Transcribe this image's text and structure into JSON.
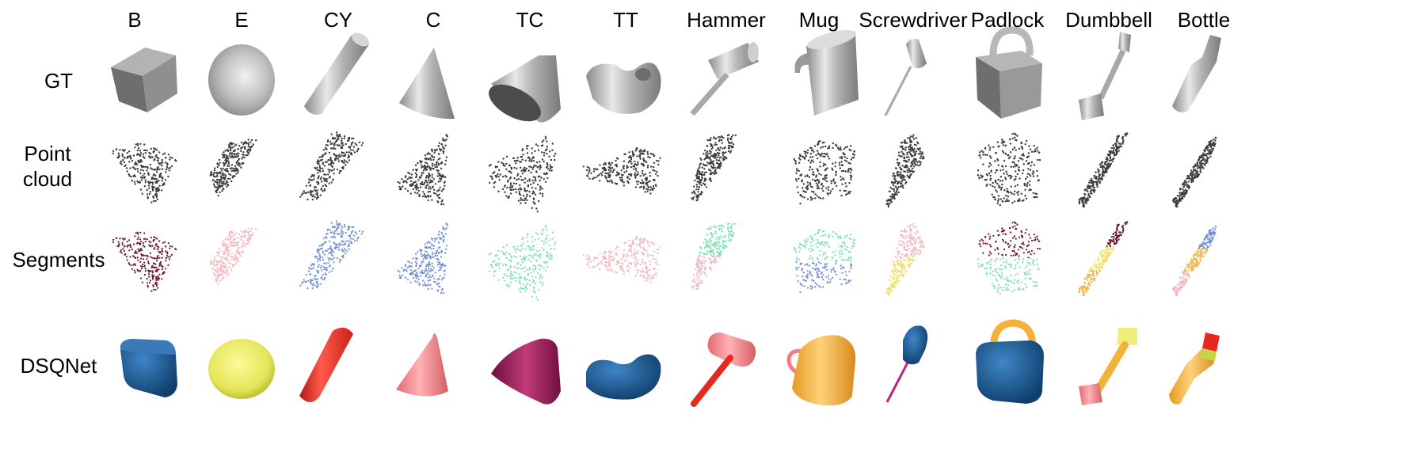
{
  "figure": {
    "columns": [
      {
        "key": "B",
        "label": "B"
      },
      {
        "key": "E",
        "label": "E"
      },
      {
        "key": "CY",
        "label": "CY"
      },
      {
        "key": "C",
        "label": "C"
      },
      {
        "key": "TC",
        "label": "TC"
      },
      {
        "key": "TT",
        "label": "TT"
      },
      {
        "key": "Hammer",
        "label": "Hammer"
      },
      {
        "key": "Mug",
        "label": "Mug"
      },
      {
        "key": "Screwdriver",
        "label": "Screwdriver"
      },
      {
        "key": "Padlock",
        "label": "Padlock"
      },
      {
        "key": "Dumbbell",
        "label": "Dumbbell"
      },
      {
        "key": "Bottle",
        "label": "Bottle"
      }
    ],
    "rows": [
      {
        "key": "gt",
        "label": "GT"
      },
      {
        "key": "pointcloud",
        "label": "Point cloud"
      },
      {
        "key": "segments",
        "label": "Segments"
      },
      {
        "key": "dsqnet",
        "label": "DSQNet"
      }
    ],
    "colors": {
      "gt_shade": "#9a9a9a",
      "gt_dark": "#5e5e5e",
      "point": "#3c3c3c",
      "seg_darkred": "#6b1a2a",
      "seg_pink": "#f2b8c0",
      "seg_blue": "#6f8fd6",
      "seg_teal": "#7fe0b4",
      "seg_yellow": "#f3dd5a",
      "seg_orange": "#f4b24a",
      "dsq_blue": "#1f5f9a",
      "dsq_yellow": "#e9ea5c",
      "dsq_red": "#e8281e",
      "dsq_salmon": "#f27e85",
      "dsq_magenta": "#9a1a5a",
      "dsq_orange": "#f3b23a"
    }
  }
}
